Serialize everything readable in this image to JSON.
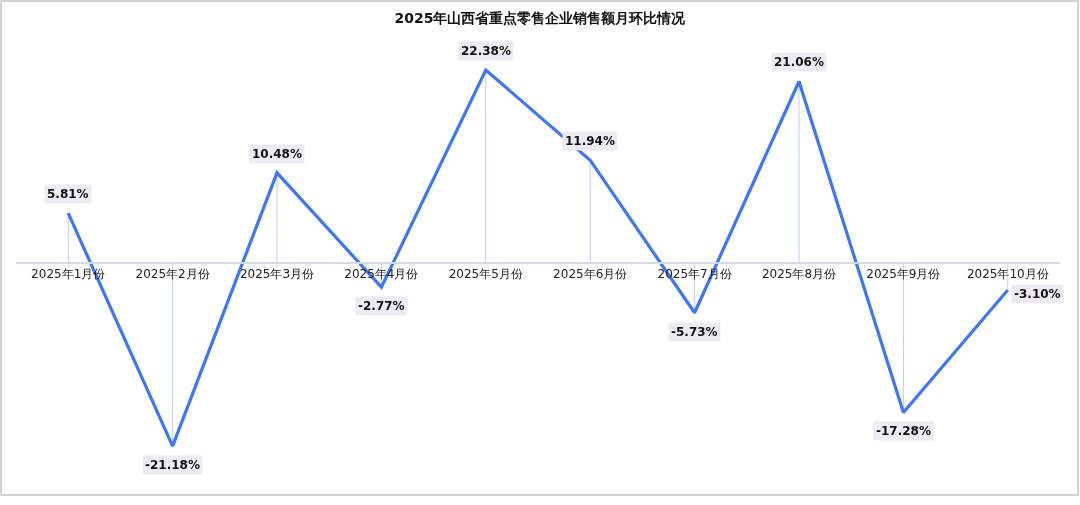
{
  "chart_data": {
    "type": "line",
    "title": "2025年山西省重点零售企业销售额月环比情况",
    "categories": [
      "2025年1月份",
      "2025年2月份",
      "2025年3月份",
      "2025年4月份",
      "2025年5月份",
      "2025年6月份",
      "2025年7月份",
      "2025年8月份",
      "2025年9月份",
      "2025年10月份"
    ],
    "values": [
      5.81,
      -21.18,
      10.48,
      -2.77,
      22.38,
      11.94,
      -5.73,
      21.06,
      -17.28,
      -3.1
    ],
    "value_labels": [
      "5.81%",
      "-21.18%",
      "10.48%",
      "-2.77%",
      "22.38%",
      "11.94%",
      "-5.73%",
      "21.06%",
      "-17.28%",
      "-3.10%"
    ],
    "color": "#3d76f8",
    "tick_labels": "x",
    "line_style": "solid"
  }
}
